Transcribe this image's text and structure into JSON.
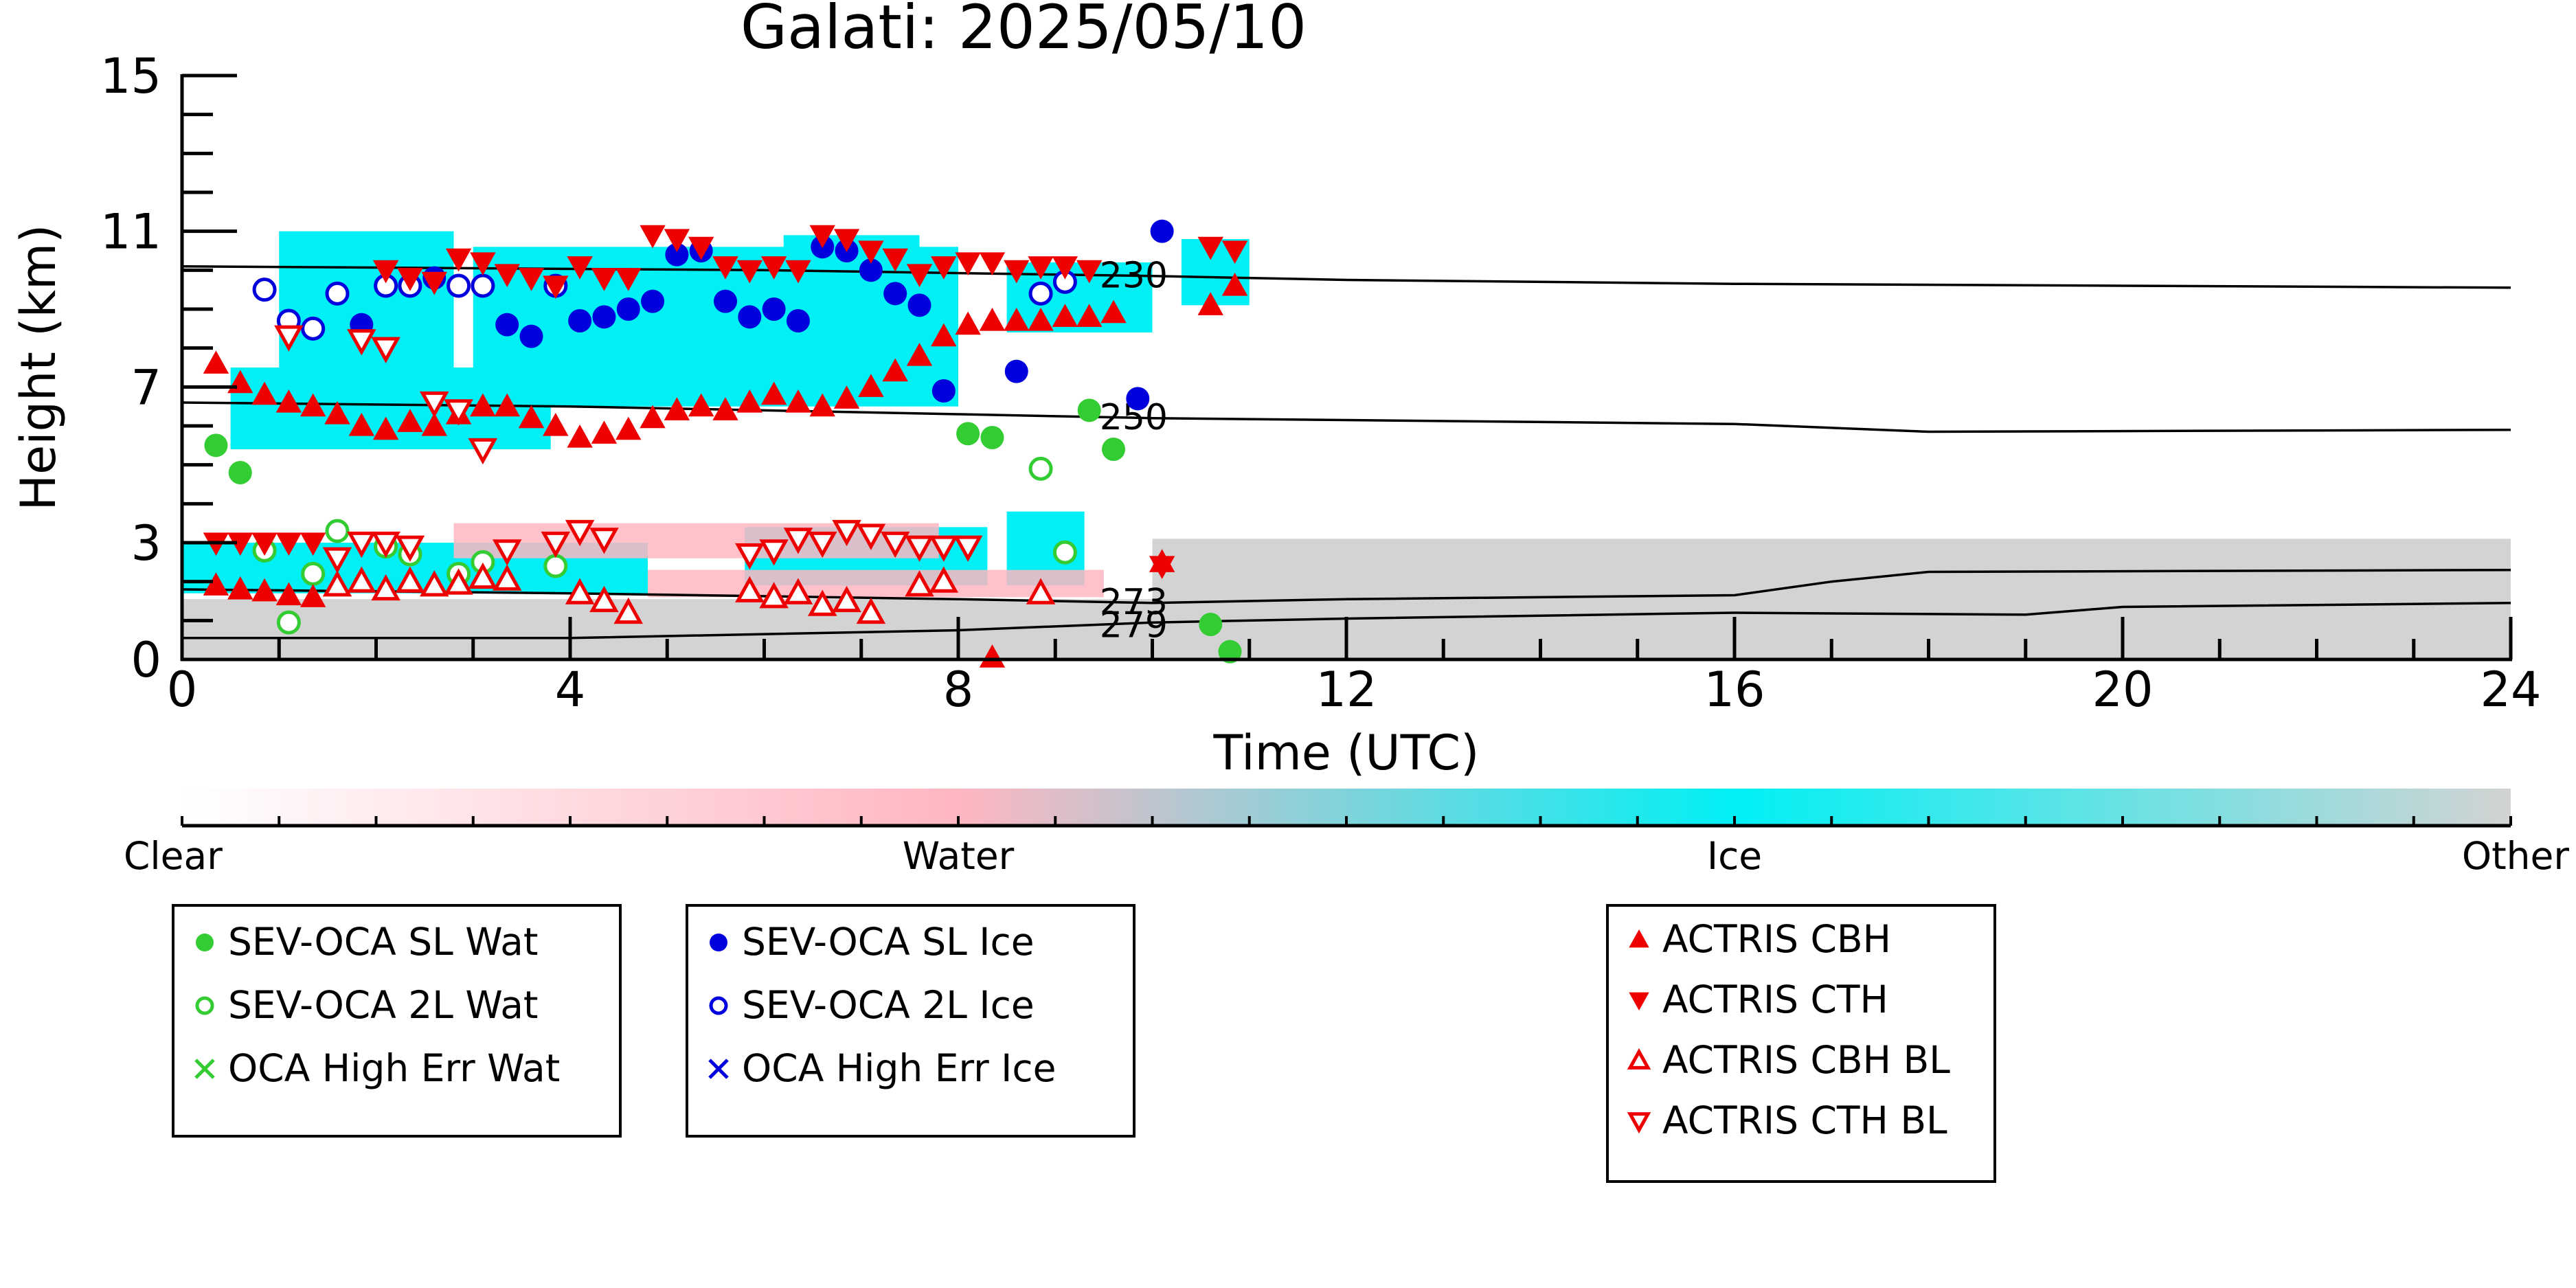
{
  "chart_data": {
    "type": "scatter",
    "title": "Galati: 2025/05/10",
    "xlabel": "Time (UTC)",
    "ylabel": "Height (km)",
    "xlim": [
      0,
      24
    ],
    "ylim": [
      0,
      15
    ],
    "x_ticks": [
      0,
      4,
      8,
      12,
      16,
      20,
      24
    ],
    "y_ticks": [
      0,
      3,
      7,
      11,
      15
    ],
    "grid": false,
    "colors": {
      "water_wat": "#33cc33",
      "ice": "#0000dd",
      "actris": "#ee0000",
      "cloud_ice": "#00f0f5",
      "cloud_water": "#ffb6c1",
      "cloud_other": "#d3d3d3"
    },
    "isotherms": [
      {
        "label": "230",
        "label_x": 9.4,
        "points": [
          [
            0,
            10.1
          ],
          [
            6,
            10.0
          ],
          [
            10,
            9.85
          ],
          [
            12,
            9.75
          ],
          [
            16,
            9.65
          ],
          [
            20,
            9.6
          ],
          [
            24,
            9.55
          ]
        ]
      },
      {
        "label": "250",
        "label_x": 9.4,
        "points": [
          [
            0,
            6.6
          ],
          [
            4,
            6.5
          ],
          [
            8,
            6.3
          ],
          [
            10,
            6.2
          ],
          [
            12,
            6.15
          ],
          [
            16,
            6.05
          ],
          [
            18,
            5.85
          ],
          [
            24,
            5.9
          ]
        ]
      },
      {
        "label": "273",
        "label_x": 9.4,
        "points": [
          [
            0,
            1.8
          ],
          [
            4,
            1.7
          ],
          [
            8,
            1.55
          ],
          [
            10,
            1.45
          ],
          [
            12,
            1.55
          ],
          [
            16,
            1.65
          ],
          [
            17,
            2.0
          ],
          [
            18,
            2.25
          ],
          [
            24,
            2.3
          ]
        ]
      },
      {
        "label": "279",
        "label_x": 9.4,
        "points": [
          [
            0,
            0.55
          ],
          [
            4,
            0.55
          ],
          [
            8,
            0.75
          ],
          [
            10,
            0.95
          ],
          [
            12,
            1.05
          ],
          [
            16,
            1.2
          ],
          [
            19,
            1.15
          ],
          [
            20,
            1.35
          ],
          [
            24,
            1.45
          ]
        ]
      }
    ],
    "series": [
      {
        "name": "SEV-OCA SL Wat",
        "marker": "filled-circle",
        "color": "#33cc33",
        "points": [
          [
            0.35,
            5.5
          ],
          [
            0.6,
            4.8
          ],
          [
            8.1,
            5.8
          ],
          [
            8.35,
            5.7
          ],
          [
            9.35,
            6.4
          ],
          [
            9.6,
            5.4
          ],
          [
            10.6,
            0.9
          ],
          [
            10.8,
            0.2
          ]
        ]
      },
      {
        "name": "SEV-OCA 2L Wat",
        "marker": "open-circle",
        "color": "#33cc33",
        "points": [
          [
            0.85,
            2.8
          ],
          [
            1.1,
            0.95
          ],
          [
            1.35,
            2.2
          ],
          [
            1.6,
            3.3
          ],
          [
            2.1,
            2.9
          ],
          [
            2.35,
            2.7
          ],
          [
            2.85,
            2.2
          ],
          [
            3.1,
            2.5
          ],
          [
            3.85,
            2.4
          ],
          [
            8.85,
            4.9
          ],
          [
            9.1,
            2.75
          ]
        ]
      },
      {
        "name": "SEV-OCA SL Ice",
        "marker": "filled-circle",
        "color": "#0000dd",
        "points": [
          [
            1.85,
            8.6
          ],
          [
            2.6,
            9.8
          ],
          [
            3.35,
            8.6
          ],
          [
            3.6,
            8.3
          ],
          [
            4.1,
            8.7
          ],
          [
            4.35,
            8.8
          ],
          [
            4.6,
            9.0
          ],
          [
            4.85,
            9.2
          ],
          [
            5.1,
            10.4
          ],
          [
            5.35,
            10.5
          ],
          [
            5.6,
            9.2
          ],
          [
            5.85,
            8.8
          ],
          [
            6.1,
            9.0
          ],
          [
            6.35,
            8.7
          ],
          [
            6.6,
            10.6
          ],
          [
            6.85,
            10.5
          ],
          [
            7.1,
            10.0
          ],
          [
            7.35,
            9.4
          ],
          [
            7.6,
            9.1
          ],
          [
            7.85,
            6.9
          ],
          [
            8.6,
            7.4
          ],
          [
            9.85,
            6.7
          ],
          [
            10.1,
            11.0
          ]
        ]
      },
      {
        "name": "SEV-OCA 2L Ice",
        "marker": "open-circle",
        "color": "#0000dd",
        "points": [
          [
            0.85,
            9.5
          ],
          [
            1.1,
            8.7
          ],
          [
            1.35,
            8.5
          ],
          [
            1.6,
            9.4
          ],
          [
            2.1,
            9.6
          ],
          [
            2.35,
            9.6
          ],
          [
            2.85,
            9.6
          ],
          [
            3.1,
            9.6
          ],
          [
            3.85,
            9.6
          ],
          [
            8.85,
            9.4
          ],
          [
            9.1,
            9.7
          ]
        ]
      },
      {
        "name": "OCA High Err Wat",
        "marker": "x",
        "color": "#33cc33",
        "points": []
      },
      {
        "name": "OCA High Err Ice",
        "marker": "x",
        "color": "#0000dd",
        "points": []
      },
      {
        "name": "ACTRIS CBH",
        "marker": "filled-up-triangle",
        "color": "#ee0000",
        "points": [
          [
            0.35,
            7.6
          ],
          [
            0.6,
            7.1
          ],
          [
            0.85,
            6.8
          ],
          [
            1.1,
            6.6
          ],
          [
            1.35,
            6.5
          ],
          [
            1.6,
            6.3
          ],
          [
            1.85,
            6.0
          ],
          [
            2.1,
            5.9
          ],
          [
            2.35,
            6.1
          ],
          [
            2.6,
            6.0
          ],
          [
            2.85,
            6.3
          ],
          [
            3.1,
            6.5
          ],
          [
            3.35,
            6.5
          ],
          [
            3.6,
            6.2
          ],
          [
            3.85,
            6.0
          ],
          [
            4.1,
            5.7
          ],
          [
            4.35,
            5.8
          ],
          [
            4.6,
            5.9
          ],
          [
            4.85,
            6.2
          ],
          [
            5.1,
            6.4
          ],
          [
            5.35,
            6.5
          ],
          [
            5.6,
            6.4
          ],
          [
            5.85,
            6.6
          ],
          [
            6.1,
            6.8
          ],
          [
            6.35,
            6.6
          ],
          [
            6.6,
            6.5
          ],
          [
            6.85,
            6.7
          ],
          [
            7.1,
            7.0
          ],
          [
            7.35,
            7.4
          ],
          [
            7.6,
            7.8
          ],
          [
            7.85,
            8.3
          ],
          [
            8.1,
            8.6
          ],
          [
            8.35,
            8.7
          ],
          [
            8.6,
            8.7
          ],
          [
            8.85,
            8.7
          ],
          [
            9.1,
            8.8
          ],
          [
            9.35,
            8.8
          ],
          [
            9.6,
            8.9
          ],
          [
            10.6,
            9.1
          ],
          [
            10.85,
            9.6
          ],
          [
            0.35,
            1.9
          ],
          [
            0.6,
            1.8
          ],
          [
            0.85,
            1.75
          ],
          [
            1.1,
            1.65
          ],
          [
            1.35,
            1.6
          ],
          [
            10.1,
            2.5
          ],
          [
            8.35,
            0.05
          ]
        ]
      },
      {
        "name": "ACTRIS CTH",
        "marker": "filled-down-triangle",
        "color": "#ee0000",
        "points": [
          [
            2.1,
            10.0
          ],
          [
            2.35,
            9.8
          ],
          [
            2.6,
            9.7
          ],
          [
            2.85,
            10.3
          ],
          [
            3.1,
            10.2
          ],
          [
            3.35,
            9.9
          ],
          [
            3.6,
            9.8
          ],
          [
            3.85,
            9.6
          ],
          [
            4.1,
            10.1
          ],
          [
            4.35,
            9.8
          ],
          [
            4.6,
            9.8
          ],
          [
            4.85,
            10.9
          ],
          [
            5.1,
            10.8
          ],
          [
            5.35,
            10.6
          ],
          [
            5.6,
            10.1
          ],
          [
            5.85,
            10.0
          ],
          [
            6.1,
            10.1
          ],
          [
            6.35,
            10.0
          ],
          [
            6.6,
            10.9
          ],
          [
            6.85,
            10.8
          ],
          [
            7.1,
            10.5
          ],
          [
            7.35,
            10.3
          ],
          [
            7.6,
            9.9
          ],
          [
            7.85,
            10.1
          ],
          [
            8.1,
            10.2
          ],
          [
            8.35,
            10.2
          ],
          [
            8.6,
            10.0
          ],
          [
            8.85,
            10.1
          ],
          [
            9.1,
            10.1
          ],
          [
            9.35,
            10.0
          ],
          [
            10.6,
            10.6
          ],
          [
            10.85,
            10.5
          ],
          [
            0.35,
            3.0
          ],
          [
            0.6,
            3.0
          ],
          [
            0.85,
            3.0
          ],
          [
            1.1,
            3.0
          ],
          [
            1.35,
            3.0
          ],
          [
            10.1,
            2.4
          ]
        ]
      },
      {
        "name": "ACTRIS CBH BL",
        "marker": "open-up-triangle",
        "color": "#ee0000",
        "points": [
          [
            1.6,
            1.9
          ],
          [
            1.85,
            2.0
          ],
          [
            2.1,
            1.8
          ],
          [
            2.35,
            2.0
          ],
          [
            2.6,
            1.9
          ],
          [
            2.85,
            1.95
          ],
          [
            3.1,
            2.1
          ],
          [
            3.35,
            2.05
          ],
          [
            4.1,
            1.7
          ],
          [
            4.35,
            1.5
          ],
          [
            4.6,
            1.2
          ],
          [
            5.85,
            1.75
          ],
          [
            6.1,
            1.6
          ],
          [
            6.35,
            1.7
          ],
          [
            6.6,
            1.4
          ],
          [
            6.85,
            1.5
          ],
          [
            7.1,
            1.2
          ],
          [
            7.6,
            1.9
          ],
          [
            7.85,
            2.0
          ],
          [
            8.85,
            1.7
          ]
        ]
      },
      {
        "name": "ACTRIS CTH BL",
        "marker": "open-down-triangle",
        "color": "#ee0000",
        "points": [
          [
            1.6,
            2.6
          ],
          [
            1.85,
            3.0
          ],
          [
            2.1,
            3.0
          ],
          [
            2.35,
            2.9
          ],
          [
            2.6,
            6.6
          ],
          [
            2.85,
            6.4
          ],
          [
            3.1,
            5.4
          ],
          [
            3.35,
            2.8
          ],
          [
            3.85,
            3.0
          ],
          [
            4.1,
            3.3
          ],
          [
            4.35,
            3.1
          ],
          [
            5.85,
            2.7
          ],
          [
            6.1,
            2.8
          ],
          [
            6.35,
            3.1
          ],
          [
            6.6,
            3.0
          ],
          [
            6.85,
            3.3
          ],
          [
            7.1,
            3.2
          ],
          [
            7.35,
            3.0
          ],
          [
            7.6,
            2.9
          ],
          [
            7.85,
            2.9
          ],
          [
            8.1,
            2.9
          ],
          [
            1.1,
            8.3
          ],
          [
            1.85,
            8.2
          ],
          [
            2.1,
            8.0
          ]
        ]
      }
    ],
    "cloud_regions": [
      {
        "phase": "Ice",
        "x": [
          0.5,
          3.8
        ],
        "y": [
          5.4,
          7.5
        ]
      },
      {
        "phase": "Ice",
        "x": [
          1.0,
          2.8
        ],
        "y": [
          7.5,
          11.0
        ]
      },
      {
        "phase": "Ice",
        "x": [
          3.0,
          8.0
        ],
        "y": [
          6.5,
          10.6
        ]
      },
      {
        "phase": "Ice",
        "x": [
          6.2,
          7.6
        ],
        "y": [
          6.6,
          10.9
        ]
      },
      {
        "phase": "Ice",
        "x": [
          8.5,
          10.0
        ],
        "y": [
          8.4,
          10.2
        ]
      },
      {
        "phase": "Ice",
        "x": [
          10.3,
          11.0
        ],
        "y": [
          9.1,
          10.8
        ]
      },
      {
        "phase": "Ice",
        "x": [
          0.0,
          4.8
        ],
        "y": [
          1.7,
          3.0
        ]
      },
      {
        "phase": "Ice",
        "x": [
          5.8,
          8.3
        ],
        "y": [
          1.9,
          3.4
        ]
      },
      {
        "phase": "Ice",
        "x": [
          8.5,
          9.3
        ],
        "y": [
          1.9,
          3.8
        ]
      },
      {
        "phase": "Water",
        "x": [
          2.8,
          7.8
        ],
        "y": [
          2.6,
          3.5
        ]
      },
      {
        "phase": "Water",
        "x": [
          4.8,
          9.5
        ],
        "y": [
          1.6,
          2.3
        ]
      },
      {
        "phase": "Other",
        "x": [
          10.0,
          24.0
        ],
        "y": [
          1.4,
          3.1
        ]
      },
      {
        "phase": "Other",
        "x": [
          0.0,
          24.0
        ],
        "y": [
          0.0,
          1.55
        ]
      }
    ],
    "colorbar": {
      "labels": [
        "Clear",
        "Water",
        "Ice",
        "Other"
      ],
      "stops": [
        "#ffffff",
        "#ffb6c1",
        "#00f0f5",
        "#d3d3d3"
      ]
    },
    "legend_groups": [
      [
        "SEV-OCA SL Wat",
        "SEV-OCA 2L Wat",
        "OCA High Err Wat"
      ],
      [
        "SEV-OCA SL Ice",
        "SEV-OCA 2L Ice",
        "OCA High Err Ice"
      ],
      [
        "ACTRIS CBH",
        "ACTRIS CTH",
        "ACTRIS CBH BL",
        "ACTRIS CTH BL"
      ]
    ]
  }
}
